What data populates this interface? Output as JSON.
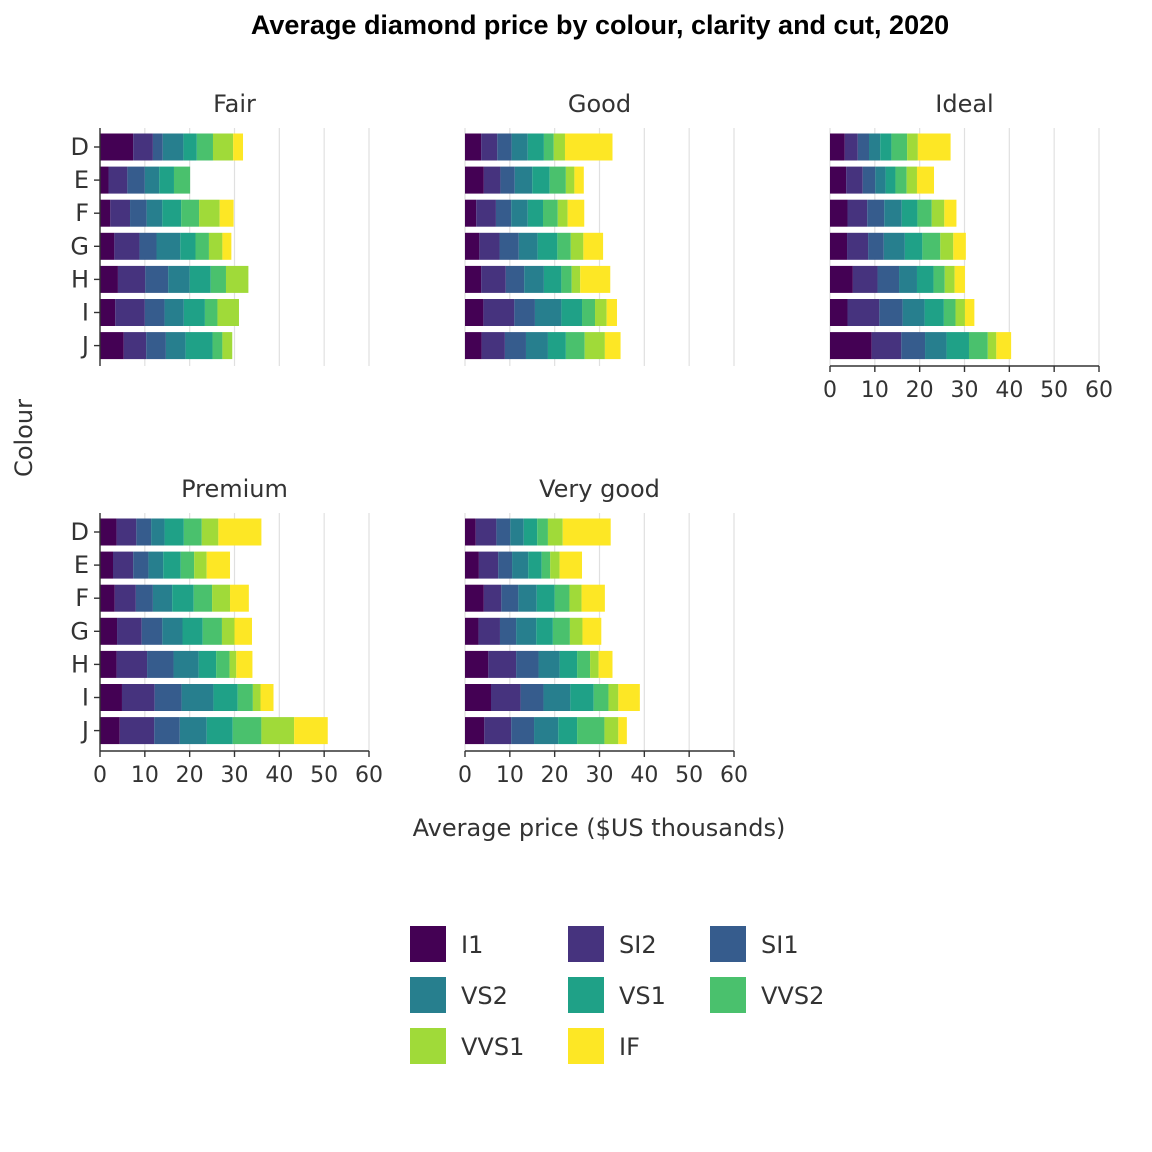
{
  "chart_data": {
    "type": "bar",
    "orientation": "horizontal",
    "stacked": true,
    "title": "Average diamond price by colour, clarity and cut, 2020",
    "xlabel": "Average price ($US thousands)",
    "ylabel": "Colour",
    "xlim": [
      0,
      60
    ],
    "xticks": [
      0,
      10,
      20,
      30,
      40,
      50,
      60
    ],
    "categories": [
      "D",
      "E",
      "F",
      "G",
      "H",
      "I",
      "J"
    ],
    "legend": {
      "position": "bottom",
      "entries": [
        {
          "name": "I1",
          "color": "#440154"
        },
        {
          "name": "SI2",
          "color": "#46337e"
        },
        {
          "name": "SI1",
          "color": "#365c8d"
        },
        {
          "name": "VS2",
          "color": "#277f8e"
        },
        {
          "name": "VS1",
          "color": "#1fa187"
        },
        {
          "name": "VVS2",
          "color": "#4ac16d"
        },
        {
          "name": "VVS1",
          "color": "#a0da39"
        },
        {
          "name": "IF",
          "color": "#fde725"
        }
      ]
    },
    "facets": [
      {
        "name": "Fair",
        "values": [
          [
            7.4,
            4.4,
            2.2,
            4.6,
            3.0,
            3.6,
            4.5,
            2.2
          ],
          [
            1.9,
            4.2,
            3.9,
            3.2,
            3.3,
            3.6,
            0,
            0
          ],
          [
            2.3,
            4.4,
            3.7,
            3.5,
            4.2,
            4.0,
            4.6,
            3.1
          ],
          [
            3.2,
            5.6,
            3.8,
            5.3,
            3.4,
            3.0,
            3.0,
            2.0
          ],
          [
            4.0,
            6.1,
            5.1,
            4.8,
            4.7,
            3.4,
            5.0,
            0
          ],
          [
            3.4,
            6.6,
            4.4,
            4.3,
            4.7,
            2.8,
            4.8,
            0
          ],
          [
            5.3,
            5.0,
            4.4,
            4.4,
            6.0,
            2.2,
            2.2,
            0
          ]
        ]
      },
      {
        "name": "Good",
        "values": [
          [
            3.6,
            3.6,
            3.2,
            3.6,
            3.6,
            2.2,
            2.5,
            10.6
          ],
          [
            4.2,
            3.7,
            3.2,
            3.9,
            3.9,
            3.6,
            1.9,
            2.1
          ],
          [
            2.5,
            4.4,
            3.4,
            3.7,
            3.4,
            3.3,
            2.2,
            3.7
          ],
          [
            3.2,
            4.5,
            4.3,
            4.2,
            4.4,
            3.0,
            2.8,
            4.4
          ],
          [
            3.6,
            5.5,
            4.1,
            4.4,
            3.9,
            2.3,
            1.9,
            6.7
          ],
          [
            4.1,
            6.9,
            4.6,
            5.9,
            4.6,
            2.9,
            2.6,
            2.3
          ],
          [
            3.7,
            5.2,
            4.7,
            4.9,
            4.0,
            4.2,
            4.5,
            3.5
          ]
        ]
      },
      {
        "name": "Ideal",
        "values": [
          [
            3.3,
            2.9,
            2.5,
            2.5,
            2.5,
            3.5,
            2.4,
            7.3
          ],
          [
            3.6,
            3.7,
            2.8,
            2.3,
            2.2,
            2.5,
            2.3,
            3.8
          ],
          [
            3.9,
            4.4,
            3.8,
            3.9,
            3.5,
            3.2,
            2.8,
            2.7
          ],
          [
            3.8,
            4.7,
            3.5,
            4.7,
            3.9,
            4.0,
            2.9,
            2.8
          ],
          [
            5.1,
            5.5,
            4.8,
            4.0,
            3.7,
            2.5,
            2.2,
            2.3
          ],
          [
            3.9,
            7.1,
            5.2,
            4.9,
            4.3,
            2.6,
            2.1,
            2.1
          ],
          [
            9.3,
            6.6,
            5.3,
            4.8,
            5.0,
            4.2,
            1.9,
            3.3
          ]
        ]
      },
      {
        "name": "Premium",
        "values": [
          [
            3.7,
            4.4,
            3.3,
            3.0,
            4.3,
            4.0,
            3.7,
            9.6
          ],
          [
            2.9,
            4.5,
            3.4,
            3.3,
            3.9,
            3.0,
            2.8,
            5.2
          ],
          [
            3.3,
            4.7,
            3.8,
            4.3,
            4.8,
            4.1,
            4.0,
            4.2
          ],
          [
            3.8,
            5.5,
            4.6,
            4.5,
            4.5,
            4.3,
            2.8,
            3.9
          ],
          [
            3.7,
            6.8,
            5.9,
            5.6,
            3.9,
            3.0,
            1.5,
            3.6
          ],
          [
            4.9,
            7.3,
            6.0,
            7.1,
            5.4,
            3.4,
            1.7,
            2.9
          ],
          [
            4.4,
            7.7,
            5.7,
            6.0,
            5.8,
            6.4,
            7.3,
            7.5
          ]
        ]
      },
      {
        "name": "Very good",
        "values": [
          [
            2.4,
            4.6,
            3.1,
            3.0,
            3.0,
            2.4,
            3.3,
            10.7
          ],
          [
            3.1,
            4.3,
            3.1,
            3.6,
            3.0,
            1.9,
            2.1,
            5.0
          ],
          [
            4.2,
            3.9,
            3.8,
            4.1,
            4.0,
            3.3,
            2.7,
            5.2
          ],
          [
            3.0,
            4.8,
            3.6,
            4.5,
            3.7,
            3.8,
            2.8,
            4.2
          ],
          [
            5.2,
            6.2,
            5.0,
            4.7,
            3.9,
            2.9,
            1.9,
            3.1
          ],
          [
            5.8,
            6.6,
            5.1,
            6.0,
            5.2,
            3.3,
            2.2,
            4.8
          ],
          [
            4.3,
            6.0,
            5.1,
            5.4,
            4.2,
            6.1,
            3.1,
            1.9
          ]
        ]
      }
    ]
  }
}
